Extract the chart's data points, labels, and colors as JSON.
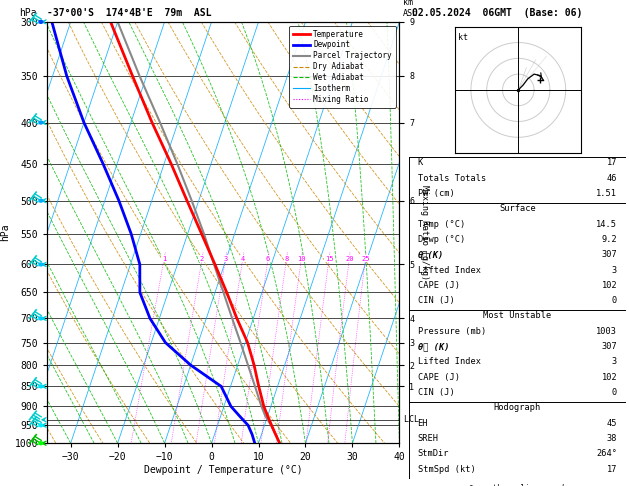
{
  "title_left": "-37°00'S  174°4B'E  79m  ASL",
  "title_right": "02.05.2024  06GMT  (Base: 06)",
  "xlabel": "Dewpoint / Temperature (°C)",
  "ylabel_left": "hPa",
  "p_levels": [
    300,
    350,
    400,
    450,
    500,
    550,
    600,
    650,
    700,
    750,
    800,
    850,
    900,
    950,
    1000
  ],
  "t_min": -35,
  "t_max": 40,
  "p_min": 300,
  "p_max": 1000,
  "skew": 30,
  "temp_profile": {
    "pressure": [
      1000,
      975,
      950,
      925,
      900,
      850,
      800,
      750,
      700,
      650,
      600,
      550,
      500,
      450,
      400,
      350,
      300
    ],
    "temperature": [
      14.5,
      13.0,
      11.5,
      10.0,
      8.5,
      6.0,
      3.5,
      0.5,
      -3.5,
      -7.5,
      -12.0,
      -17.0,
      -22.5,
      -28.5,
      -35.5,
      -43.0,
      -51.5
    ]
  },
  "dewp_profile": {
    "pressure": [
      1000,
      975,
      950,
      925,
      900,
      850,
      800,
      750,
      700,
      650,
      600,
      550,
      500,
      450,
      400,
      350,
      300
    ],
    "temperature": [
      9.2,
      8.0,
      6.5,
      4.0,
      1.5,
      -2.0,
      -10.0,
      -17.0,
      -22.0,
      -26.0,
      -28.0,
      -32.0,
      -37.0,
      -43.0,
      -50.0,
      -57.0,
      -64.0
    ]
  },
  "parcel_profile": {
    "pressure": [
      1000,
      975,
      950,
      925,
      900,
      850,
      800,
      750,
      700,
      650,
      600,
      550,
      500,
      450,
      400,
      350,
      300
    ],
    "temperature": [
      14.5,
      13.0,
      11.4,
      9.5,
      8.0,
      5.2,
      2.2,
      -1.0,
      -4.5,
      -8.2,
      -12.2,
      -16.5,
      -21.5,
      -27.2,
      -33.8,
      -41.5,
      -50.0
    ]
  },
  "colors": {
    "temperature": "#ff0000",
    "dewpoint": "#0000ff",
    "parcel": "#888888",
    "dry_adiabat": "#cc8800",
    "wet_adiabat": "#00bb00",
    "isotherm": "#00aaff",
    "mixing_ratio": "#ff00ff",
    "background": "#ffffff",
    "grid": "#000000"
  },
  "legend_items": [
    {
      "label": "Temperature",
      "color": "#ff0000",
      "ls": "-",
      "lw": 2.0
    },
    {
      "label": "Dewpoint",
      "color": "#0000ff",
      "ls": "-",
      "lw": 2.0
    },
    {
      "label": "Parcel Trajectory",
      "color": "#888888",
      "ls": "-",
      "lw": 1.5
    },
    {
      "label": "Dry Adiabat",
      "color": "#cc8800",
      "ls": "--",
      "lw": 0.8
    },
    {
      "label": "Wet Adiabat",
      "color": "#00bb00",
      "ls": "--",
      "lw": 0.8
    },
    {
      "label": "Isotherm",
      "color": "#00aaff",
      "ls": "-",
      "lw": 0.8
    },
    {
      "label": "Mixing Ratio",
      "color": "#ff00ff",
      "ls": ":",
      "lw": 0.8
    }
  ],
  "mixing_ratio_values": [
    1,
    2,
    3,
    4,
    6,
    8,
    10,
    15,
    20,
    25
  ],
  "km_ticks": {
    "300": 9,
    "350": 8,
    "400": 7,
    "500": 6,
    "600": 5,
    "700": 4,
    "750": 3,
    "800": 2,
    "850": 1
  },
  "lcl_pressure": 935,
  "info_box": {
    "K": 17,
    "Totals_Totals": 46,
    "PW_cm": 1.51,
    "Surface_Temp": 14.5,
    "Surface_Dewp": 9.2,
    "Surface_ThetaE": 307,
    "Surface_Lifted_Index": 3,
    "Surface_CAPE": 102,
    "Surface_CIN": 0,
    "MU_Pressure": 1003,
    "MU_ThetaE": 307,
    "MU_Lifted_Index": 3,
    "MU_CAPE": 102,
    "MU_CIN": 0,
    "EH": 45,
    "SREH": 38,
    "StmDir": 264,
    "StmSpd_kt": 17
  },
  "wind_barbs": [
    {
      "pressure": 300,
      "flag": true,
      "color": "#00cccc"
    },
    {
      "pressure": 400,
      "flag": false,
      "color": "#00cccc"
    },
    {
      "pressure": 500,
      "flag": false,
      "color": "#00cccc"
    },
    {
      "pressure": 600,
      "flag": false,
      "color": "#00cccc"
    },
    {
      "pressure": 700,
      "flag": false,
      "color": "#00cccc"
    },
    {
      "pressure": 850,
      "flag": false,
      "color": "#00cccc"
    },
    {
      "pressure": 935,
      "flag": false,
      "color": "#00cccc"
    },
    {
      "pressure": 950,
      "flag": false,
      "color": "#00cccc"
    },
    {
      "pressure": 1000,
      "flag": false,
      "color": "#00bb00"
    }
  ]
}
